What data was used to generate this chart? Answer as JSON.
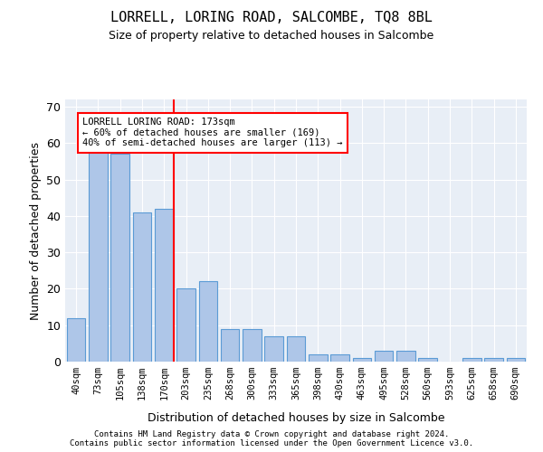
{
  "title": "LORRELL, LORING ROAD, SALCOMBE, TQ8 8BL",
  "subtitle": "Size of property relative to detached houses in Salcombe",
  "xlabel": "Distribution of detached houses by size in Salcombe",
  "ylabel": "Number of detached properties",
  "bar_labels": [
    "40sqm",
    "73sqm",
    "105sqm",
    "138sqm",
    "170sqm",
    "203sqm",
    "235sqm",
    "268sqm",
    "300sqm",
    "333sqm",
    "365sqm",
    "398sqm",
    "430sqm",
    "463sqm",
    "495sqm",
    "528sqm",
    "560sqm",
    "593sqm",
    "625sqm",
    "658sqm",
    "690sqm"
  ],
  "bar_values": [
    12,
    58,
    57,
    41,
    42,
    20,
    22,
    9,
    9,
    7,
    7,
    2,
    2,
    1,
    3,
    3,
    1,
    0,
    1,
    1,
    1
  ],
  "bar_color": "#aec6e8",
  "bar_edge_color": "#5b9bd5",
  "vline_x": 4,
  "vline_color": "red",
  "annotation_text": "LORRELL LORING ROAD: 173sqm\n← 60% of detached houses are smaller (169)\n40% of semi-detached houses are larger (113) →",
  "annotation_box_color": "white",
  "annotation_box_edge": "red",
  "ylim": [
    0,
    72
  ],
  "yticks": [
    0,
    10,
    20,
    30,
    40,
    50,
    60,
    70
  ],
  "background_color": "#e8eef6",
  "footer_line1": "Contains HM Land Registry data © Crown copyright and database right 2024.",
  "footer_line2": "Contains public sector information licensed under the Open Government Licence v3.0."
}
